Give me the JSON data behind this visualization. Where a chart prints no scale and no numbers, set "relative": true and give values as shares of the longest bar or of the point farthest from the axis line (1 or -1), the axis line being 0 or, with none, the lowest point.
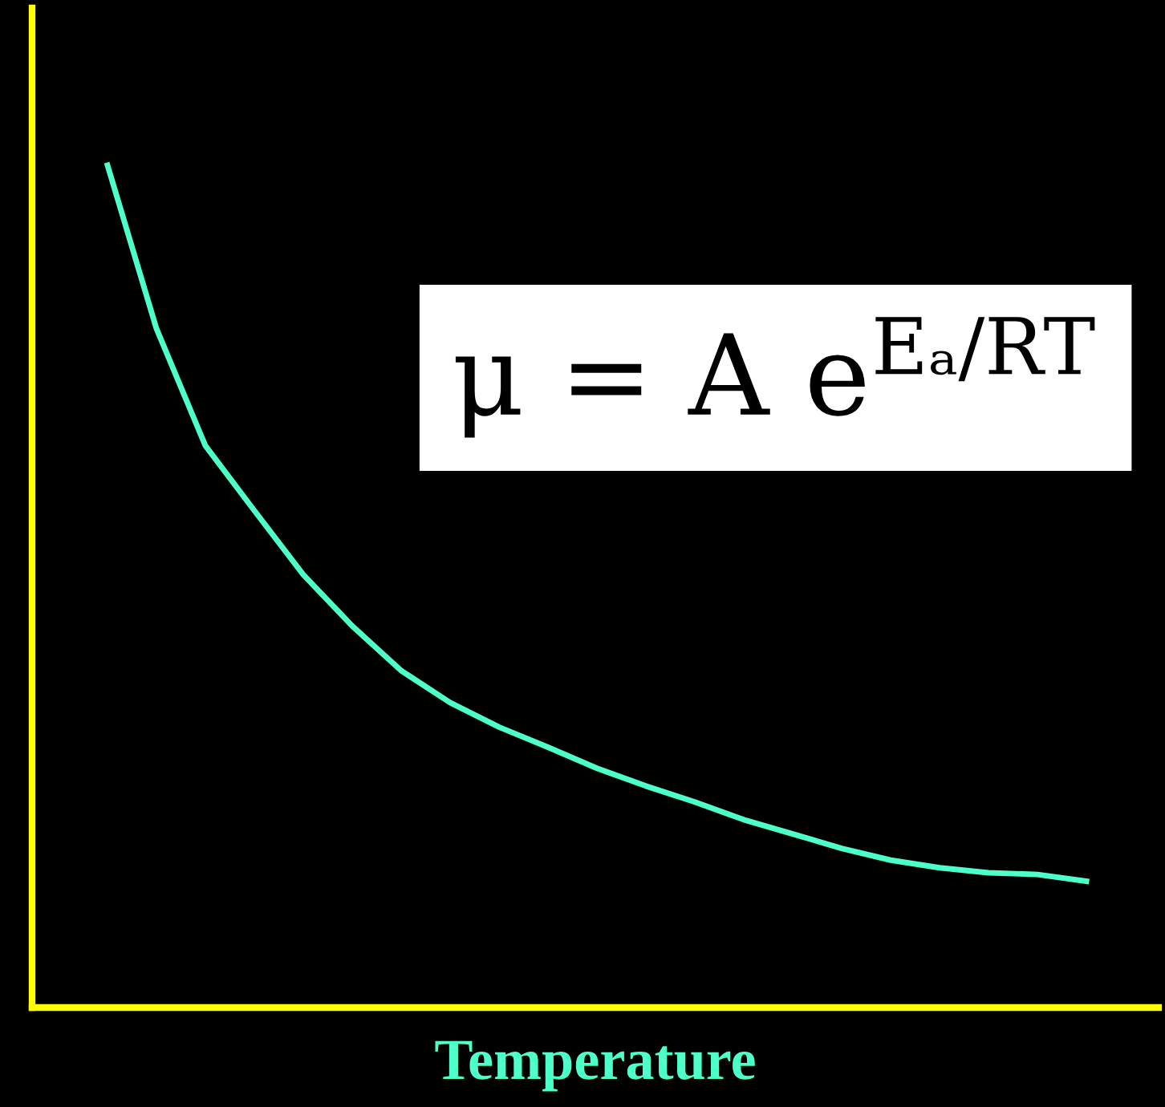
{
  "chart_data": {
    "type": "line",
    "relative": true,
    "xlabel": "Temperature",
    "categories": [
      null,
      null,
      null,
      null,
      null,
      null,
      null,
      null,
      null,
      null,
      null,
      null,
      null,
      null,
      null,
      null,
      null,
      null,
      null,
      null,
      null
    ],
    "series": [
      {
        "color": "#4dffc8",
        "values": [
          1.0,
          0.806,
          0.667,
          0.59,
          0.514,
          0.453,
          0.4,
          0.362,
          0.333,
          0.309,
          0.284,
          0.263,
          0.244,
          0.223,
          0.206,
          0.189,
          0.175,
          0.166,
          0.16,
          0.158,
          0.15
        ]
      }
    ],
    "annotations": [
      "μ = A e$^{Eₐ/RT}$"
    ],
    "legend": false,
    "marker": "none",
    "line_style": "solid"
  }
}
